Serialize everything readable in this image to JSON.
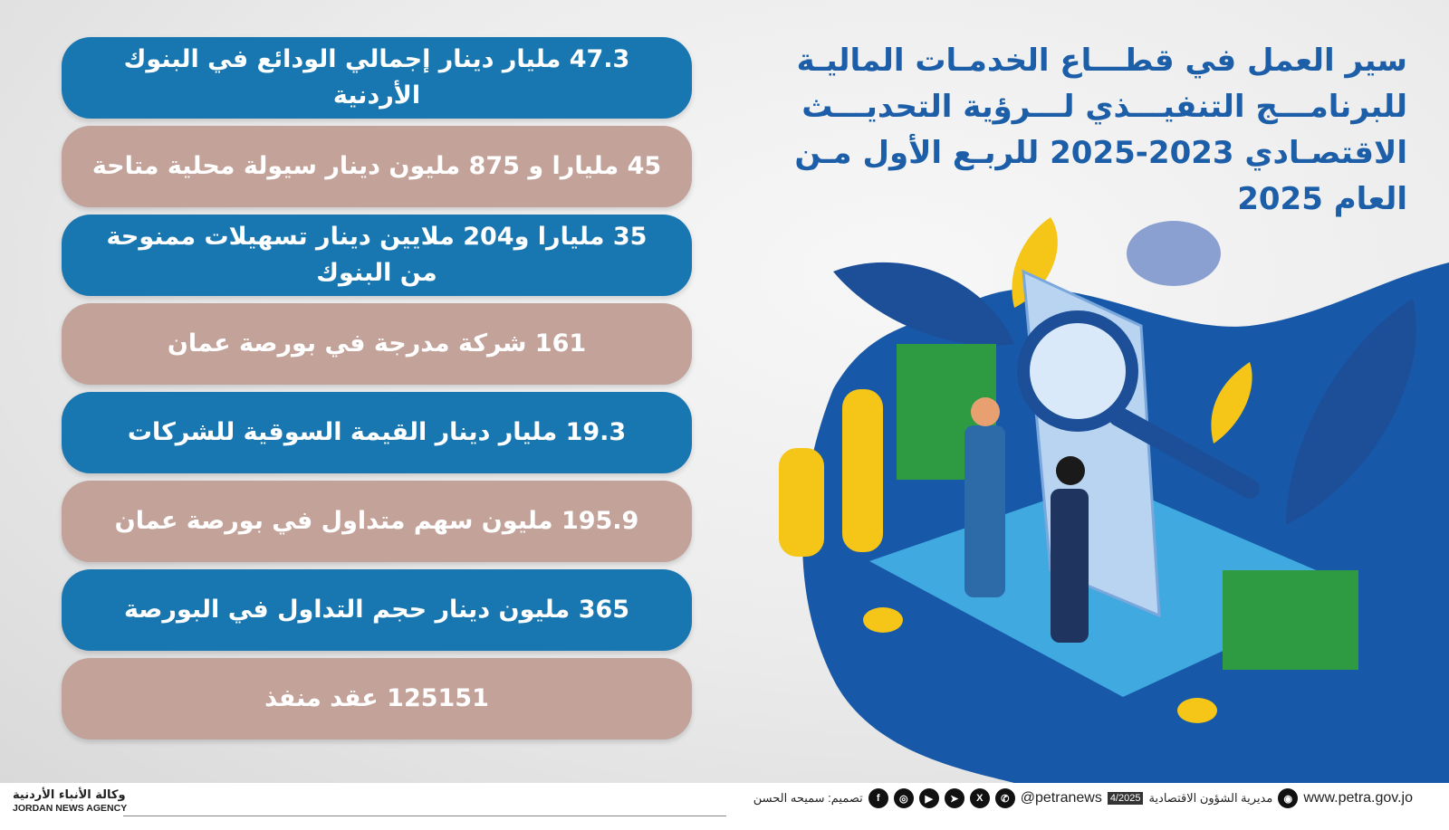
{
  "title_lines": [
    "سير العمل في  قطـــاع الخدمـات الماليـة",
    "للبرنامـــج التنفيـــذي لـــرؤية التحديـــث",
    "الاقتصـادي 2023-2025 للربـع الأول مـن",
    "العام 2025"
  ],
  "stats": [
    {
      "text": "47.3 مليار دينار إجمالي الودائع في البنوك الأردنية",
      "color": "blue"
    },
    {
      "text": "45 مليارا و 875 مليون دينار سيولة محلية متاحة",
      "color": "pink"
    },
    {
      "text": "35  مليارا و204 ملايين دينار تسهيلات ممنوحة من البنوك",
      "color": "blue"
    },
    {
      "text": "161 شركة مدرجة في بورصة عمان",
      "color": "pink"
    },
    {
      "text": "19.3 مليار دينار القيمة السوقية للشركات",
      "color": "blue"
    },
    {
      "text": "195.9 مليون سهم متداول في بورصة عمان",
      "color": "pink"
    },
    {
      "text": "365 مليون دينار حجم التداول في البورصة",
      "color": "blue"
    },
    {
      "text": "125151 عقد منفذ",
      "color": "pink"
    }
  ],
  "colors": {
    "blue": "#1877b1",
    "pink": "#c3a299",
    "title": "#1c5ea8"
  },
  "footer": {
    "agency_ar": "وكالة الأنباء الأردنية",
    "agency_en": "JORDAN NEWS AGENCY",
    "designer": "تصميم: سميحه الحسن",
    "handle": "@petranews",
    "date": "4/2025",
    "department": "مديرية الشؤون الاقتصادية",
    "website": "www.petra.gov.jo",
    "social_icons": [
      "facebook-icon",
      "instagram-icon",
      "youtube-icon",
      "telegram-icon",
      "x-icon",
      "whatsapp-icon"
    ]
  }
}
